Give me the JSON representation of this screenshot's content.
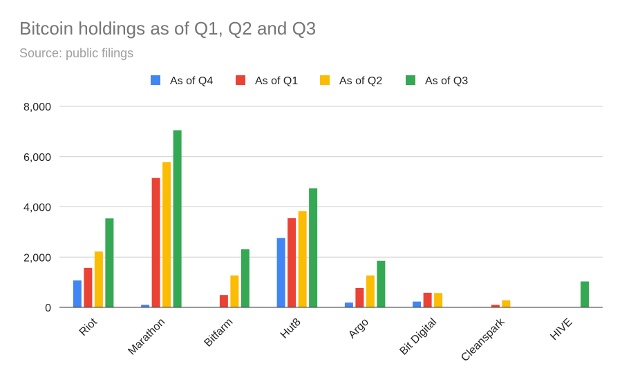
{
  "chart_data": {
    "type": "bar",
    "title": "Bitcoin holdings as of Q1, Q2 and Q3",
    "subtitle": "Source: public filings",
    "categories": [
      "Riot",
      "Marathon",
      "Bitfarm",
      "Hut8",
      "Argo",
      "Bit Digital",
      "Cleanspark",
      "HIVE"
    ],
    "series": [
      {
        "name": "As of Q4",
        "color": "#4285F4",
        "values": [
          1070,
          100,
          0,
          2760,
          190,
          230,
          0,
          0
        ]
      },
      {
        "name": "As of Q1",
        "color": "#EA4335",
        "values": [
          1570,
          5150,
          490,
          3550,
          770,
          580,
          100,
          0
        ]
      },
      {
        "name": "As of Q2",
        "color": "#FBBC04",
        "values": [
          2220,
          5780,
          1270,
          3830,
          1270,
          570,
          280,
          0
        ]
      },
      {
        "name": "As of Q3",
        "color": "#34A853",
        "values": [
          3540,
          7050,
          2310,
          4740,
          1850,
          0,
          0,
          1030
        ]
      }
    ],
    "ylim": [
      0,
      8000
    ],
    "yticks": [
      0,
      2000,
      4000,
      6000,
      8000
    ],
    "ytick_labels": [
      "0",
      "2,000",
      "4,000",
      "6,000",
      "8,000"
    ],
    "xlabel": "",
    "ylabel": "",
    "grid": true,
    "legend_position": "top"
  }
}
